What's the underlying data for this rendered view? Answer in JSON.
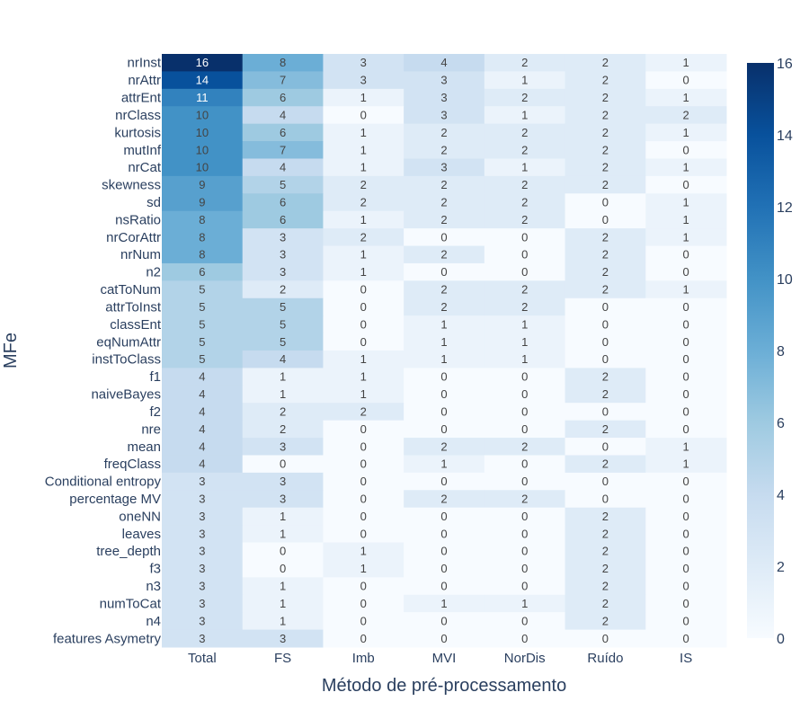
{
  "chart_data": {
    "type": "heatmap",
    "title": "",
    "xlabel": "Método de pré-processamento",
    "ylabel": "MFe",
    "x_categories": [
      "Total",
      "FS",
      "Imb",
      "MVI",
      "NorDis",
      "Ruído",
      "IS"
    ],
    "y_categories": [
      "nrInst",
      "nrAttr",
      "attrEnt",
      "nrClass",
      "kurtosis",
      "mutInf",
      "nrCat",
      "skewness",
      "sd",
      "nsRatio",
      "nrCorAttr",
      "nrNum",
      "n2",
      "catToNum",
      "attrToInst",
      "classEnt",
      "eqNumAttr",
      "instToClass",
      "f1",
      "naiveBayes",
      "f2",
      "nre",
      "mean",
      "freqClass",
      "Conditional entropy",
      "percentage MV",
      "oneNN",
      "leaves",
      "tree_depth",
      "f3",
      "n3",
      "numToCat",
      "n4",
      "features Asymetry"
    ],
    "values": [
      [
        16,
        8,
        3,
        4,
        2,
        2,
        1
      ],
      [
        14,
        7,
        3,
        3,
        1,
        2,
        0
      ],
      [
        11,
        6,
        1,
        3,
        2,
        2,
        1
      ],
      [
        10,
        4,
        0,
        3,
        1,
        2,
        2
      ],
      [
        10,
        6,
        1,
        2,
        2,
        2,
        1
      ],
      [
        10,
        7,
        1,
        2,
        2,
        2,
        0
      ],
      [
        10,
        4,
        1,
        3,
        1,
        2,
        1
      ],
      [
        9,
        5,
        2,
        2,
        2,
        2,
        0
      ],
      [
        9,
        6,
        2,
        2,
        2,
        0,
        1
      ],
      [
        8,
        6,
        1,
        2,
        2,
        0,
        1
      ],
      [
        8,
        3,
        2,
        0,
        0,
        2,
        1
      ],
      [
        8,
        3,
        1,
        2,
        0,
        2,
        0
      ],
      [
        6,
        3,
        1,
        0,
        0,
        2,
        0
      ],
      [
        5,
        2,
        0,
        2,
        2,
        2,
        1
      ],
      [
        5,
        5,
        0,
        2,
        2,
        0,
        0
      ],
      [
        5,
        5,
        0,
        1,
        1,
        0,
        0
      ],
      [
        5,
        5,
        0,
        1,
        1,
        0,
        0
      ],
      [
        5,
        4,
        1,
        1,
        1,
        0,
        0
      ],
      [
        4,
        1,
        1,
        0,
        0,
        2,
        0
      ],
      [
        4,
        1,
        1,
        0,
        0,
        2,
        0
      ],
      [
        4,
        2,
        2,
        0,
        0,
        0,
        0
      ],
      [
        4,
        2,
        0,
        0,
        0,
        2,
        0
      ],
      [
        4,
        3,
        0,
        2,
        2,
        0,
        1
      ],
      [
        4,
        0,
        0,
        1,
        0,
        2,
        1
      ],
      [
        3,
        3,
        0,
        0,
        0,
        0,
        0
      ],
      [
        3,
        3,
        0,
        2,
        2,
        0,
        0
      ],
      [
        3,
        1,
        0,
        0,
        0,
        2,
        0
      ],
      [
        3,
        1,
        0,
        0,
        0,
        2,
        0
      ],
      [
        3,
        0,
        1,
        0,
        0,
        2,
        0
      ],
      [
        3,
        0,
        1,
        0,
        0,
        2,
        0
      ],
      [
        3,
        1,
        0,
        0,
        0,
        2,
        0
      ],
      [
        3,
        1,
        0,
        1,
        1,
        2,
        0
      ],
      [
        3,
        1,
        0,
        0,
        0,
        2,
        0
      ],
      [
        3,
        3,
        0,
        0,
        0,
        0,
        0
      ]
    ],
    "zrange": [
      0,
      16
    ],
    "colorscale": "Blues",
    "colorbar_ticks": [
      0,
      2,
      4,
      6,
      8,
      10,
      12,
      14,
      16
    ],
    "show_cell_labels": true,
    "legend": "colorbar-right"
  }
}
